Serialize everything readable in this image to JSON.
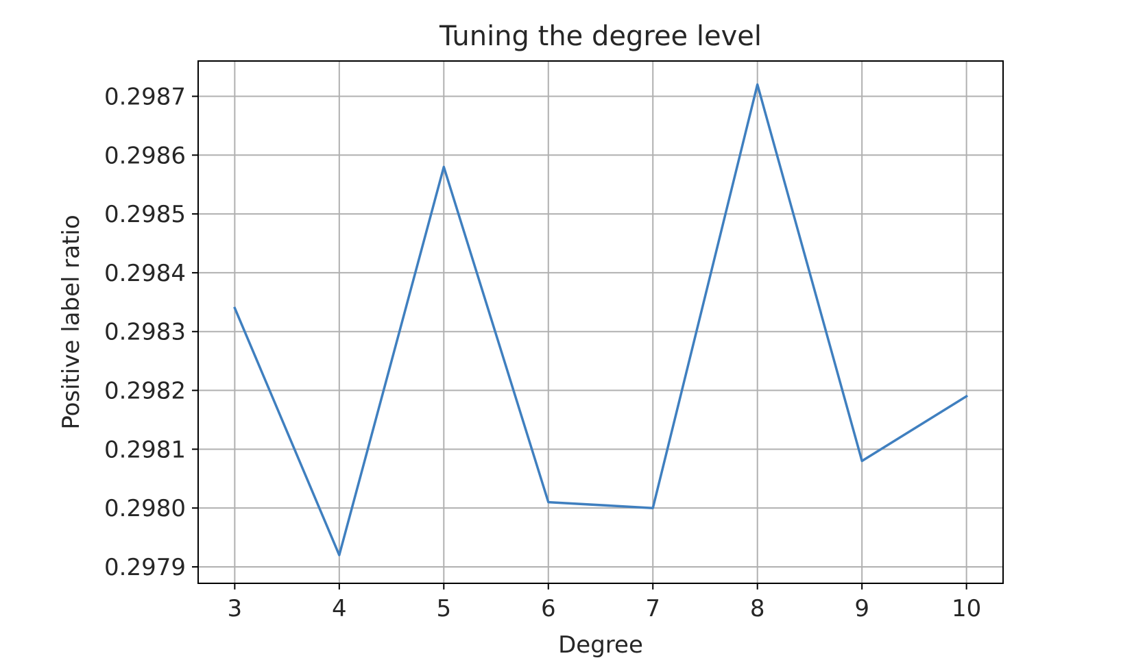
{
  "chart_data": {
    "type": "line",
    "title": "Tuning the degree level",
    "xlabel": "Degree",
    "ylabel": "Positive label ratio",
    "x": [
      3,
      4,
      5,
      6,
      7,
      8,
      9,
      10
    ],
    "series": [
      {
        "values": [
          0.29834,
          0.29792,
          0.29858,
          0.29801,
          0.298,
          0.29872,
          0.29808,
          0.29819
        ]
      }
    ],
    "xlim": [
      2.65,
      10.35
    ],
    "ylim": [
      0.297872,
      0.29876
    ],
    "x_ticks": [
      "3",
      "4",
      "5",
      "6",
      "7",
      "8",
      "9",
      "10"
    ],
    "y_ticks": [
      "0.2979",
      "0.2980",
      "0.2981",
      "0.2982",
      "0.2983",
      "0.2984",
      "0.2985",
      "0.2986",
      "0.2987"
    ],
    "grid": true,
    "colors": {
      "line": "#3f7fbf",
      "grid": "#b0b0b0",
      "axes": "#000000"
    }
  }
}
